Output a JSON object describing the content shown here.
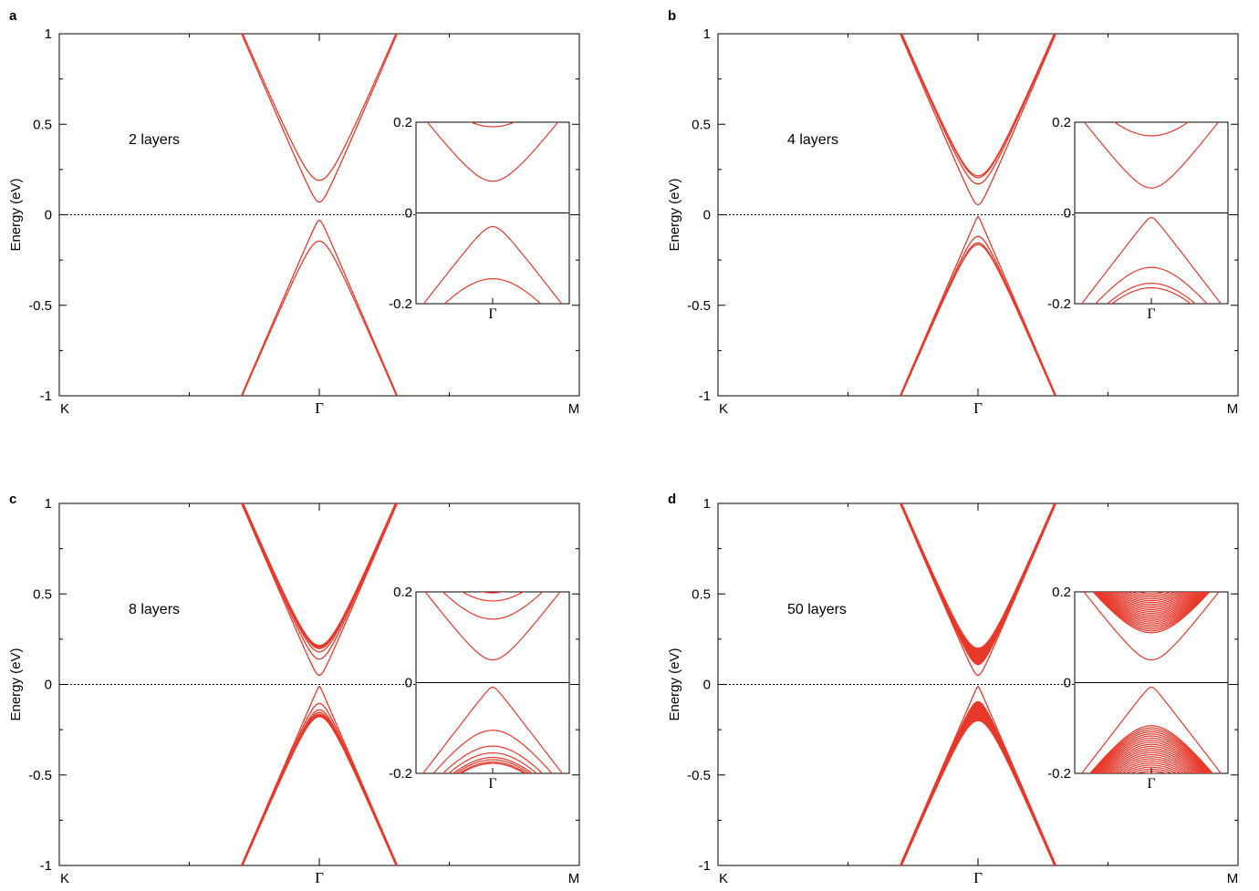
{
  "colors": {
    "band": "#e8392b",
    "axis": "#000000"
  },
  "chart_data": [
    {
      "type": "line",
      "panel": "a",
      "annotation": "2 layers",
      "layers": 2,
      "ylabel": "Energy (eV)",
      "ylim": [
        -1,
        1
      ],
      "yticks": [
        "1",
        "0.5",
        "0",
        "-0.5",
        "-1"
      ],
      "xticks": [
        "K",
        "Γ",
        "M"
      ],
      "fermi_level": 0,
      "conduction_minima": [
        0.07,
        0.19
      ],
      "valence_maxima": [
        -0.03,
        -0.145
      ],
      "inset": {
        "ylim": [
          -0.2,
          0.2
        ],
        "yticks": [
          "0.2",
          "0",
          "-0.2"
        ],
        "xtick": "Γ"
      }
    },
    {
      "type": "line",
      "panel": "b",
      "annotation": "4 layers",
      "layers": 4,
      "ylabel": "Energy (eV)",
      "ylim": [
        -1,
        1
      ],
      "yticks": [
        "1",
        "0.5",
        "0",
        "-0.5",
        "-1"
      ],
      "xticks": [
        "K",
        "Γ",
        "M"
      ],
      "fermi_level": 0,
      "conduction_minima": [
        0.055,
        0.17,
        0.205,
        0.215
      ],
      "valence_maxima": [
        -0.01,
        -0.12,
        -0.155,
        -0.165
      ],
      "inset": {
        "ylim": [
          -0.2,
          0.2
        ],
        "yticks": [
          "0.2",
          "0",
          "-0.2"
        ],
        "xtick": "Γ"
      }
    },
    {
      "type": "line",
      "panel": "c",
      "annotation": "8 layers",
      "layers": 8,
      "ylabel": "Energy (eV)",
      "ylim": [
        -1,
        1
      ],
      "yticks": [
        "1",
        "0.5",
        "0",
        "-0.5",
        "-1"
      ],
      "xticks": [
        "K",
        "Γ",
        "M"
      ],
      "fermi_level": 0,
      "conduction_minima": [
        0.05,
        0.14,
        0.18,
        0.198,
        0.205,
        0.21,
        0.213,
        0.215
      ],
      "valence_maxima": [
        -0.01,
        -0.105,
        -0.14,
        -0.155,
        -0.165,
        -0.17,
        -0.175,
        -0.178
      ],
      "inset": {
        "ylim": [
          -0.2,
          0.2
        ],
        "yticks": [
          "0.2",
          "0",
          "-0.2"
        ],
        "xtick": "Γ"
      }
    },
    {
      "type": "line",
      "panel": "d",
      "annotation": "50 layers",
      "layers": 50,
      "ylabel": "Energy (eV)",
      "ylim": [
        -1,
        1
      ],
      "yticks": [
        "1",
        "0.5",
        "0",
        "-0.5",
        "-1"
      ],
      "xticks": [
        "K",
        "Γ",
        "M"
      ],
      "fermi_level": 0,
      "conduction_minima": [
        0.05,
        0.11,
        0.2
      ],
      "valence_maxima": [
        -0.01,
        -0.095,
        -0.2
      ],
      "inset": {
        "ylim": [
          -0.2,
          0.2
        ],
        "yticks": [
          "0.2",
          "0",
          "-0.2"
        ],
        "xtick": "Γ"
      }
    }
  ]
}
